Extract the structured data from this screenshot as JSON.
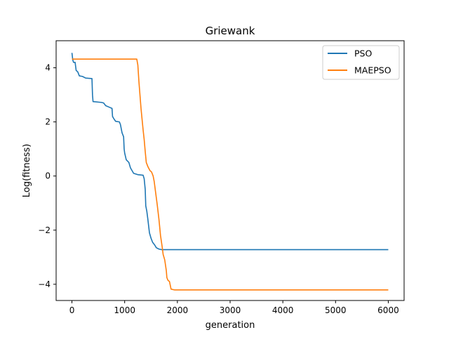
{
  "chart_data": {
    "type": "line",
    "title": "Griewank",
    "xlabel": "generation",
    "ylabel": "Log(fitness)",
    "xlim": [
      -300,
      6300
    ],
    "ylim": [
      -4.6,
      5.0
    ],
    "xticks": [
      0,
      1000,
      2000,
      3000,
      4000,
      5000,
      6000
    ],
    "yticks": [
      -4,
      -2,
      0,
      2,
      4
    ],
    "grid": false,
    "legend": "top-right",
    "series": [
      {
        "name": "PSO",
        "color": "#1f77b4",
        "points": [
          [
            0,
            4.55
          ],
          [
            15,
            4.3
          ],
          [
            30,
            4.2
          ],
          [
            60,
            4.2
          ],
          [
            80,
            3.9
          ],
          [
            110,
            3.85
          ],
          [
            140,
            3.7
          ],
          [
            200,
            3.68
          ],
          [
            260,
            3.62
          ],
          [
            380,
            3.6
          ],
          [
            390,
            3.0
          ],
          [
            400,
            2.75
          ],
          [
            560,
            2.72
          ],
          [
            600,
            2.7
          ],
          [
            640,
            2.6
          ],
          [
            700,
            2.55
          ],
          [
            760,
            2.5
          ],
          [
            770,
            2.2
          ],
          [
            800,
            2.1
          ],
          [
            830,
            2.02
          ],
          [
            900,
            2.0
          ],
          [
            920,
            1.9
          ],
          [
            950,
            1.6
          ],
          [
            980,
            1.45
          ],
          [
            990,
            1.0
          ],
          [
            1000,
            0.85
          ],
          [
            1030,
            0.6
          ],
          [
            1080,
            0.5
          ],
          [
            1110,
            0.3
          ],
          [
            1170,
            0.1
          ],
          [
            1250,
            0.05
          ],
          [
            1350,
            0.03
          ],
          [
            1370,
            -0.1
          ],
          [
            1390,
            -0.5
          ],
          [
            1400,
            -1.1
          ],
          [
            1420,
            -1.3
          ],
          [
            1440,
            -1.6
          ],
          [
            1470,
            -2.1
          ],
          [
            1500,
            -2.3
          ],
          [
            1530,
            -2.45
          ],
          [
            1570,
            -2.55
          ],
          [
            1600,
            -2.65
          ],
          [
            1650,
            -2.7
          ],
          [
            1700,
            -2.72
          ],
          [
            2000,
            -2.72
          ],
          [
            3000,
            -2.72
          ],
          [
            4000,
            -2.72
          ],
          [
            5000,
            -2.72
          ],
          [
            6000,
            -2.72
          ]
        ]
      },
      {
        "name": "MAEPSO",
        "color": "#ff7f0e",
        "points": [
          [
            0,
            4.32
          ],
          [
            500,
            4.32
          ],
          [
            1000,
            4.32
          ],
          [
            1230,
            4.32
          ],
          [
            1250,
            4.1
          ],
          [
            1270,
            3.5
          ],
          [
            1290,
            3.0
          ],
          [
            1310,
            2.5
          ],
          [
            1330,
            2.1
          ],
          [
            1350,
            1.7
          ],
          [
            1370,
            1.35
          ],
          [
            1390,
            0.9
          ],
          [
            1410,
            0.5
          ],
          [
            1440,
            0.35
          ],
          [
            1480,
            0.2
          ],
          [
            1510,
            0.15
          ],
          [
            1540,
            0.0
          ],
          [
            1560,
            -0.2
          ],
          [
            1580,
            -0.5
          ],
          [
            1600,
            -0.8
          ],
          [
            1620,
            -1.1
          ],
          [
            1650,
            -1.6
          ],
          [
            1680,
            -2.2
          ],
          [
            1710,
            -2.6
          ],
          [
            1730,
            -2.9
          ],
          [
            1760,
            -3.1
          ],
          [
            1790,
            -3.5
          ],
          [
            1800,
            -3.75
          ],
          [
            1820,
            -3.85
          ],
          [
            1850,
            -3.9
          ],
          [
            1880,
            -4.18
          ],
          [
            1950,
            -4.21
          ],
          [
            2200,
            -4.21
          ],
          [
            3000,
            -4.21
          ],
          [
            4000,
            -4.21
          ],
          [
            5000,
            -4.21
          ],
          [
            6000,
            -4.21
          ]
        ]
      }
    ]
  }
}
